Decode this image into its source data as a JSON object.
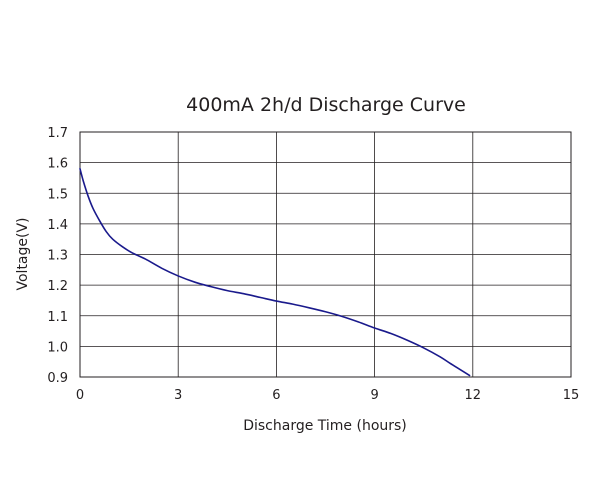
{
  "chart_data": {
    "type": "line",
    "title": "400mA 2h/d Discharge Curve",
    "xlabel": "Discharge Time (hours)",
    "ylabel": "Voltage(V)",
    "xlim": [
      0,
      15
    ],
    "ylim": [
      0.9,
      1.7
    ],
    "xticks": [
      0,
      3,
      6,
      9,
      12,
      15
    ],
    "yticks": [
      0.9,
      1.0,
      1.1,
      1.2,
      1.3,
      1.4,
      1.5,
      1.6,
      1.7
    ],
    "xtick_labels": [
      "0",
      "3",
      "6",
      "9",
      "12",
      "15"
    ],
    "ytick_labels": [
      "0.9",
      "1.0",
      "1.1",
      "1.2",
      "1.3",
      "1.4",
      "1.5",
      "1.6",
      "1.7"
    ],
    "grid": true,
    "legend": "none",
    "series": [
      {
        "color": "#1a1a8c",
        "x": [
          0,
          0.1,
          0.25,
          0.4,
          0.6,
          0.8,
          1.0,
          1.3,
          1.6,
          2.0,
          2.5,
          3.0,
          3.5,
          4.0,
          4.5,
          5.0,
          5.5,
          6.0,
          6.5,
          7.0,
          7.5,
          8.0,
          8.5,
          9.0,
          9.5,
          10.0,
          10.5,
          11.0,
          11.3,
          11.6,
          11.9
        ],
        "y": [
          1.58,
          1.54,
          1.49,
          1.45,
          1.41,
          1.375,
          1.35,
          1.325,
          1.305,
          1.285,
          1.255,
          1.23,
          1.21,
          1.195,
          1.182,
          1.172,
          1.16,
          1.148,
          1.138,
          1.126,
          1.113,
          1.098,
          1.08,
          1.06,
          1.042,
          1.02,
          0.995,
          0.966,
          0.945,
          0.925,
          0.905
        ]
      }
    ]
  }
}
